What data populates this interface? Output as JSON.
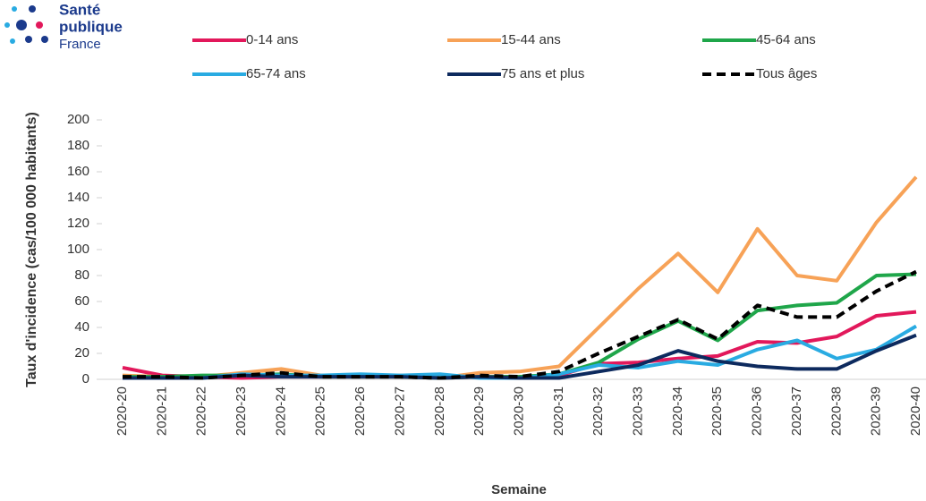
{
  "logo": {
    "lines": [
      "Santé",
      "publique",
      "France"
    ]
  },
  "chart_data": {
    "type": "line",
    "ylabel": "Taux d'incidence (cas/100 000 habitants)",
    "xlabel": "Semaine",
    "categories": [
      "2020-20",
      "2020-21",
      "2020-22",
      "2020-23",
      "2020-24",
      "2020-25",
      "2020-26",
      "2020-27",
      "2020-28",
      "2020-29",
      "2020-30",
      "2020-31",
      "2020-32",
      "2020-33",
      "2020-34",
      "2020-35",
      "2020-36",
      "2020-37",
      "2020-38",
      "2020-39",
      "2020-40"
    ],
    "ylim": [
      0,
      200
    ],
    "yticks": [
      0,
      20,
      40,
      60,
      80,
      100,
      120,
      140,
      160,
      180,
      200
    ],
    "series": [
      {
        "name": "0-14 ans",
        "color": "#e2185b",
        "values": [
          9,
          3,
          2,
          1,
          2,
          2,
          2,
          2,
          1,
          2,
          2,
          3,
          12,
          13,
          16,
          18,
          29,
          28,
          33,
          49,
          52
        ]
      },
      {
        "name": "15-44 ans",
        "color": "#f7a257",
        "values": [
          3,
          2,
          2,
          5,
          8,
          3,
          3,
          3,
          1,
          5,
          6,
          10,
          40,
          70,
          97,
          67,
          116,
          80,
          76,
          121,
          156
        ]
      },
      {
        "name": "45-64 ans",
        "color": "#1fa64a",
        "values": [
          2,
          2,
          3,
          3,
          4,
          2,
          2,
          2,
          1,
          2,
          2,
          4,
          13,
          31,
          45,
          30,
          53,
          57,
          59,
          80,
          81
        ]
      },
      {
        "name": "65-74 ans",
        "color": "#29abe2",
        "values": [
          1,
          1,
          1,
          4,
          3,
          3,
          4,
          3,
          4,
          1,
          1,
          4,
          11,
          9,
          14,
          11,
          23,
          30,
          16,
          23,
          41
        ]
      },
      {
        "name": "75 ans et plus",
        "color": "#0d2a5e",
        "values": [
          1,
          1,
          1,
          3,
          2,
          2,
          2,
          2,
          1,
          2,
          1,
          1,
          6,
          11,
          22,
          14,
          10,
          8,
          8,
          22,
          34
        ]
      },
      {
        "name": "Tous âges",
        "color": "#000000",
        "dashed": true,
        "values": [
          2,
          2,
          1,
          3,
          5,
          2,
          2,
          2,
          1,
          3,
          2,
          6,
          20,
          33,
          46,
          31,
          57,
          48,
          48,
          68,
          83
        ]
      }
    ]
  }
}
